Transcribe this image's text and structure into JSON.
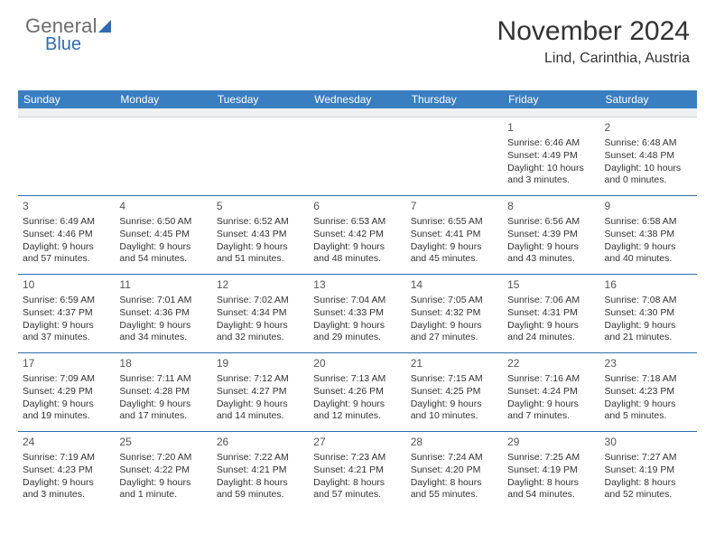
{
  "logo": {
    "text1": "General",
    "text2": "Blue"
  },
  "title": "November 2024",
  "location": "Lind, Carinthia, Austria",
  "colors": {
    "header_bg": "#3a7ec2",
    "header_fg": "#ffffff",
    "accent": "#2f6bb0",
    "sep_bg": "#eef0f2",
    "text": "#333333"
  },
  "dayHeaders": [
    "Sunday",
    "Monday",
    "Tuesday",
    "Wednesday",
    "Thursday",
    "Friday",
    "Saturday"
  ],
  "weeks": [
    [
      null,
      null,
      null,
      null,
      null,
      {
        "n": "1",
        "sr": "6:46 AM",
        "ss": "4:49 PM",
        "dl": "Daylight: 10 hours and 3 minutes."
      },
      {
        "n": "2",
        "sr": "6:48 AM",
        "ss": "4:48 PM",
        "dl": "Daylight: 10 hours and 0 minutes."
      }
    ],
    [
      {
        "n": "3",
        "sr": "6:49 AM",
        "ss": "4:46 PM",
        "dl": "Daylight: 9 hours and 57 minutes."
      },
      {
        "n": "4",
        "sr": "6:50 AM",
        "ss": "4:45 PM",
        "dl": "Daylight: 9 hours and 54 minutes."
      },
      {
        "n": "5",
        "sr": "6:52 AM",
        "ss": "4:43 PM",
        "dl": "Daylight: 9 hours and 51 minutes."
      },
      {
        "n": "6",
        "sr": "6:53 AM",
        "ss": "4:42 PM",
        "dl": "Daylight: 9 hours and 48 minutes."
      },
      {
        "n": "7",
        "sr": "6:55 AM",
        "ss": "4:41 PM",
        "dl": "Daylight: 9 hours and 45 minutes."
      },
      {
        "n": "8",
        "sr": "6:56 AM",
        "ss": "4:39 PM",
        "dl": "Daylight: 9 hours and 43 minutes."
      },
      {
        "n": "9",
        "sr": "6:58 AM",
        "ss": "4:38 PM",
        "dl": "Daylight: 9 hours and 40 minutes."
      }
    ],
    [
      {
        "n": "10",
        "sr": "6:59 AM",
        "ss": "4:37 PM",
        "dl": "Daylight: 9 hours and 37 minutes."
      },
      {
        "n": "11",
        "sr": "7:01 AM",
        "ss": "4:36 PM",
        "dl": "Daylight: 9 hours and 34 minutes."
      },
      {
        "n": "12",
        "sr": "7:02 AM",
        "ss": "4:34 PM",
        "dl": "Daylight: 9 hours and 32 minutes."
      },
      {
        "n": "13",
        "sr": "7:04 AM",
        "ss": "4:33 PM",
        "dl": "Daylight: 9 hours and 29 minutes."
      },
      {
        "n": "14",
        "sr": "7:05 AM",
        "ss": "4:32 PM",
        "dl": "Daylight: 9 hours and 27 minutes."
      },
      {
        "n": "15",
        "sr": "7:06 AM",
        "ss": "4:31 PM",
        "dl": "Daylight: 9 hours and 24 minutes."
      },
      {
        "n": "16",
        "sr": "7:08 AM",
        "ss": "4:30 PM",
        "dl": "Daylight: 9 hours and 21 minutes."
      }
    ],
    [
      {
        "n": "17",
        "sr": "7:09 AM",
        "ss": "4:29 PM",
        "dl": "Daylight: 9 hours and 19 minutes."
      },
      {
        "n": "18",
        "sr": "7:11 AM",
        "ss": "4:28 PM",
        "dl": "Daylight: 9 hours and 17 minutes."
      },
      {
        "n": "19",
        "sr": "7:12 AM",
        "ss": "4:27 PM",
        "dl": "Daylight: 9 hours and 14 minutes."
      },
      {
        "n": "20",
        "sr": "7:13 AM",
        "ss": "4:26 PM",
        "dl": "Daylight: 9 hours and 12 minutes."
      },
      {
        "n": "21",
        "sr": "7:15 AM",
        "ss": "4:25 PM",
        "dl": "Daylight: 9 hours and 10 minutes."
      },
      {
        "n": "22",
        "sr": "7:16 AM",
        "ss": "4:24 PM",
        "dl": "Daylight: 9 hours and 7 minutes."
      },
      {
        "n": "23",
        "sr": "7:18 AM",
        "ss": "4:23 PM",
        "dl": "Daylight: 9 hours and 5 minutes."
      }
    ],
    [
      {
        "n": "24",
        "sr": "7:19 AM",
        "ss": "4:23 PM",
        "dl": "Daylight: 9 hours and 3 minutes."
      },
      {
        "n": "25",
        "sr": "7:20 AM",
        "ss": "4:22 PM",
        "dl": "Daylight: 9 hours and 1 minute."
      },
      {
        "n": "26",
        "sr": "7:22 AM",
        "ss": "4:21 PM",
        "dl": "Daylight: 8 hours and 59 minutes."
      },
      {
        "n": "27",
        "sr": "7:23 AM",
        "ss": "4:21 PM",
        "dl": "Daylight: 8 hours and 57 minutes."
      },
      {
        "n": "28",
        "sr": "7:24 AM",
        "ss": "4:20 PM",
        "dl": "Daylight: 8 hours and 55 minutes."
      },
      {
        "n": "29",
        "sr": "7:25 AM",
        "ss": "4:19 PM",
        "dl": "Daylight: 8 hours and 54 minutes."
      },
      {
        "n": "30",
        "sr": "7:27 AM",
        "ss": "4:19 PM",
        "dl": "Daylight: 8 hours and 52 minutes."
      }
    ]
  ],
  "labels": {
    "sunrise": "Sunrise: ",
    "sunset": "Sunset: "
  }
}
